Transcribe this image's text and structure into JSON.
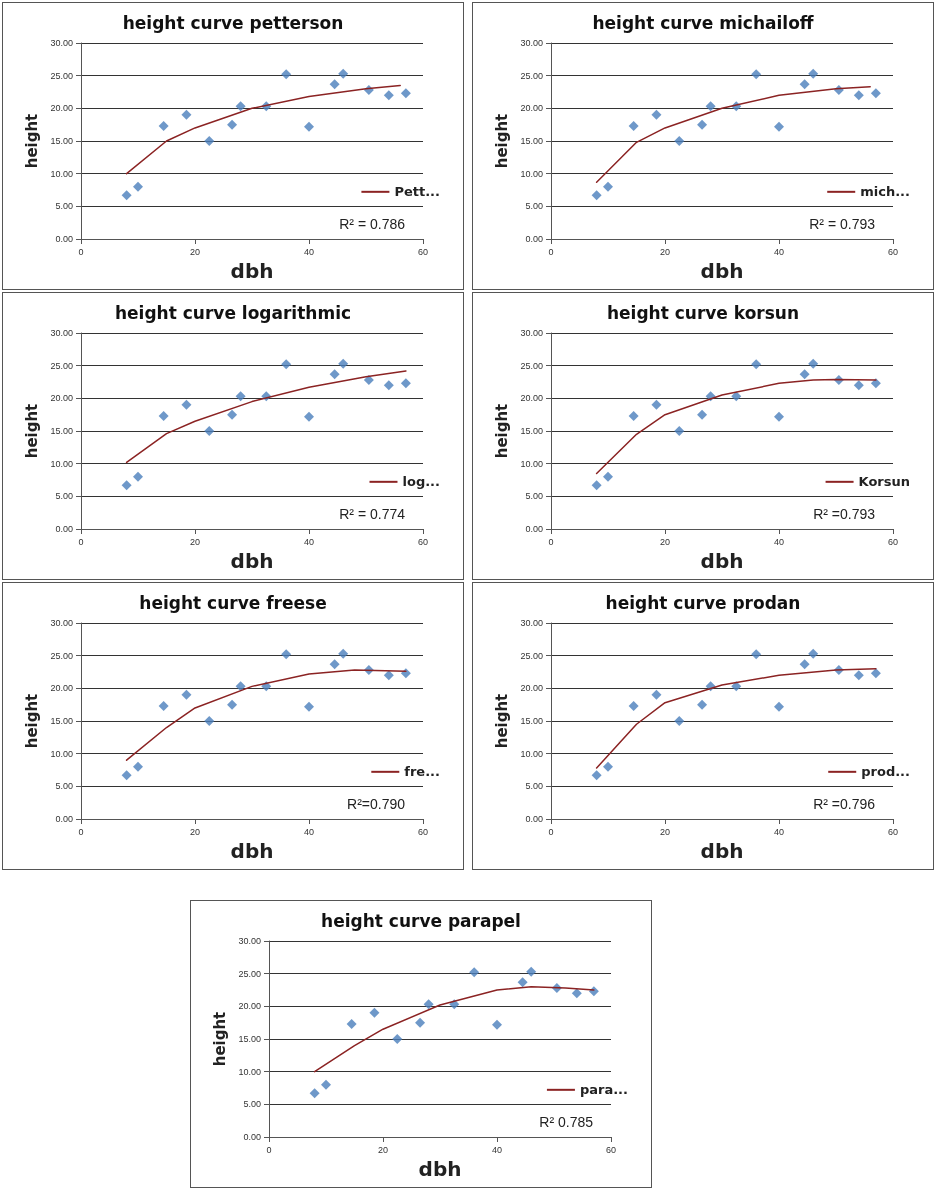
{
  "chart_data": [
    {
      "type": "scatter",
      "title": "height curve petterson",
      "xlabel": "dbh",
      "ylabel": "height",
      "xlim": [
        0,
        60
      ],
      "xticks": [
        0,
        20,
        40,
        60
      ],
      "ylim": [
        0,
        30
      ],
      "yticks": [
        {
          "value": 0,
          "label": "0.00"
        },
        {
          "value": 5,
          "label": "5.00"
        },
        {
          "value": 10,
          "label": "10.00"
        },
        {
          "value": 15,
          "label": "15.00"
        },
        {
          "value": 20,
          "label": "20.00"
        },
        {
          "value": 25,
          "label": "25.00"
        },
        {
          "value": 30,
          "label": "30.00"
        }
      ],
      "grid": "y",
      "legend": "right",
      "marker": "diamond",
      "annotations": [
        "R² = 0.786"
      ],
      "series": [
        {
          "type": "scatter",
          "color": "#4a7ebb",
          "x": [
            8,
            10,
            14.5,
            18.5,
            22.5,
            26.5,
            28,
            32.5,
            36,
            40,
            44.5,
            46,
            50.5,
            54,
            57
          ],
          "values": [
            6.7,
            8,
            17.3,
            19,
            15,
            17.5,
            20.3,
            20.3,
            25.2,
            17.2,
            23.7,
            25.3,
            22.8,
            22,
            22.3
          ]
        },
        {
          "type": "line",
          "name": "Pett...",
          "color": "#8b2323",
          "marker": "none",
          "x": [
            8,
            15,
            20,
            30,
            40,
            50,
            56
          ],
          "values": [
            10,
            15,
            17,
            20,
            21.8,
            23,
            23.5
          ]
        }
      ]
    },
    {
      "type": "scatter",
      "title": "height curve michailoff",
      "xlabel": "dbh",
      "ylabel": "height",
      "xlim": [
        0,
        60
      ],
      "xticks": [
        0,
        20,
        40,
        60
      ],
      "ylim": [
        0,
        30
      ],
      "yticks": [
        {
          "value": 0,
          "label": "0.00"
        },
        {
          "value": 5,
          "label": "5.00"
        },
        {
          "value": 10,
          "label": "10.00"
        },
        {
          "value": 15,
          "label": "15.00"
        },
        {
          "value": 20,
          "label": "20.00"
        },
        {
          "value": 25,
          "label": "25.00"
        },
        {
          "value": 30,
          "label": "30.00"
        }
      ],
      "grid": "y",
      "legend": "right",
      "marker": "diamond",
      "annotations": [
        "R² = 0.793"
      ],
      "series": [
        {
          "type": "scatter",
          "color": "#4a7ebb",
          "x": [
            8,
            10,
            14.5,
            18.5,
            22.5,
            26.5,
            28,
            32.5,
            36,
            40,
            44.5,
            46,
            50.5,
            54,
            57
          ],
          "values": [
            6.7,
            8,
            17.3,
            19,
            15,
            17.5,
            20.3,
            20.3,
            25.2,
            17.2,
            23.7,
            25.3,
            22.8,
            22,
            22.3
          ]
        },
        {
          "type": "line",
          "name": "mich...",
          "color": "#8b2323",
          "marker": "none",
          "x": [
            8,
            15,
            20,
            30,
            40,
            50,
            56
          ],
          "values": [
            8.7,
            14.8,
            17,
            20,
            22,
            23,
            23.3
          ]
        }
      ]
    },
    {
      "type": "scatter",
      "title": "height curve logarithmic",
      "xlabel": "dbh",
      "ylabel": "height",
      "xlim": [
        0,
        60
      ],
      "xticks": [
        0,
        20,
        40,
        60
      ],
      "ylim": [
        0,
        30
      ],
      "yticks": [
        {
          "value": 0,
          "label": "0.00"
        },
        {
          "value": 5,
          "label": "5.00"
        },
        {
          "value": 10,
          "label": "10.00"
        },
        {
          "value": 15,
          "label": "15.00"
        },
        {
          "value": 20,
          "label": "20.00"
        },
        {
          "value": 25,
          "label": "25.00"
        },
        {
          "value": 30,
          "label": "30.00"
        }
      ],
      "grid": "y",
      "legend": "right",
      "marker": "diamond",
      "annotations": [
        "R² = 0.774"
      ],
      "series": [
        {
          "type": "scatter",
          "color": "#4a7ebb",
          "x": [
            8,
            10,
            14.5,
            18.5,
            22.5,
            26.5,
            28,
            32.5,
            36,
            40,
            44.5,
            46,
            50.5,
            54,
            57
          ],
          "values": [
            6.7,
            8,
            17.3,
            19,
            15,
            17.5,
            20.3,
            20.3,
            25.2,
            17.2,
            23.7,
            25.3,
            22.8,
            22,
            22.3
          ]
        },
        {
          "type": "line",
          "name": "log...",
          "color": "#8b2323",
          "marker": "none",
          "x": [
            8,
            15,
            20,
            30,
            40,
            50,
            57
          ],
          "values": [
            10.2,
            14.6,
            16.5,
            19.5,
            21.7,
            23.3,
            24.2
          ]
        }
      ]
    },
    {
      "type": "scatter",
      "title": "height curve korsun",
      "xlabel": "dbh",
      "ylabel": "height",
      "xlim": [
        0,
        60
      ],
      "xticks": [
        0,
        20,
        40,
        60
      ],
      "ylim": [
        0,
        30
      ],
      "yticks": [
        {
          "value": 0,
          "label": "0.00"
        },
        {
          "value": 5,
          "label": "5.00"
        },
        {
          "value": 10,
          "label": "10.00"
        },
        {
          "value": 15,
          "label": "15.00"
        },
        {
          "value": 20,
          "label": "20.00"
        },
        {
          "value": 25,
          "label": "25.00"
        },
        {
          "value": 30,
          "label": "30.00"
        }
      ],
      "grid": "y",
      "legend": "right",
      "marker": "diamond",
      "annotations": [
        "R² =0.793"
      ],
      "series": [
        {
          "type": "scatter",
          "color": "#4a7ebb",
          "x": [
            8,
            10,
            14.5,
            18.5,
            22.5,
            26.5,
            28,
            32.5,
            36,
            40,
            44.5,
            46,
            50.5,
            54,
            57
          ],
          "values": [
            6.7,
            8,
            17.3,
            19,
            15,
            17.5,
            20.3,
            20.3,
            25.2,
            17.2,
            23.7,
            25.3,
            22.8,
            22,
            22.3
          ]
        },
        {
          "type": "line",
          "name": "Korsun",
          "color": "#8b2323",
          "marker": "none",
          "x": [
            8,
            15,
            20,
            30,
            40,
            46,
            50,
            57
          ],
          "values": [
            8.5,
            14.5,
            17.5,
            20.5,
            22.3,
            22.8,
            22.9,
            22.8
          ]
        }
      ]
    },
    {
      "type": "scatter",
      "title": "height curve freese",
      "xlabel": "dbh",
      "ylabel": "height",
      "xlim": [
        0,
        60
      ],
      "xticks": [
        0,
        20,
        40,
        60
      ],
      "ylim": [
        0,
        30
      ],
      "yticks": [
        {
          "value": 0,
          "label": "0.00"
        },
        {
          "value": 5,
          "label": "5.00"
        },
        {
          "value": 10,
          "label": "10.00"
        },
        {
          "value": 15,
          "label": "15.00"
        },
        {
          "value": 20,
          "label": "20.00"
        },
        {
          "value": 25,
          "label": "25.00"
        },
        {
          "value": 30,
          "label": "30.00"
        }
      ],
      "grid": "y",
      "legend": "right",
      "marker": "diamond",
      "annotations": [
        "R²=0.790"
      ],
      "series": [
        {
          "type": "scatter",
          "color": "#4a7ebb",
          "x": [
            8,
            10,
            14.5,
            18.5,
            22.5,
            26.5,
            28,
            32.5,
            36,
            40,
            44.5,
            46,
            50.5,
            54,
            57
          ],
          "values": [
            6.7,
            8,
            17.3,
            19,
            15,
            17.5,
            20.3,
            20.3,
            25.2,
            17.2,
            23.7,
            25.3,
            22.8,
            22,
            22.3
          ]
        },
        {
          "type": "line",
          "name": "fre...",
          "color": "#8b2323",
          "marker": "none",
          "x": [
            8,
            15,
            20,
            30,
            40,
            48,
            57
          ],
          "values": [
            9,
            14,
            17,
            20.3,
            22.2,
            22.8,
            22.6
          ]
        }
      ]
    },
    {
      "type": "scatter",
      "title": "height curve prodan",
      "xlabel": "dbh",
      "ylabel": "height",
      "xlim": [
        0,
        60
      ],
      "xticks": [
        0,
        20,
        40,
        60
      ],
      "ylim": [
        0,
        30
      ],
      "yticks": [
        {
          "value": 0,
          "label": "0.00"
        },
        {
          "value": 5,
          "label": "5.00"
        },
        {
          "value": 10,
          "label": "10.00"
        },
        {
          "value": 15,
          "label": "15.00"
        },
        {
          "value": 20,
          "label": "20.00"
        },
        {
          "value": 25,
          "label": "25.00"
        },
        {
          "value": 30,
          "label": "30.00"
        }
      ],
      "grid": "y",
      "legend": "right",
      "marker": "diamond",
      "annotations": [
        "R² =0.796"
      ],
      "series": [
        {
          "type": "scatter",
          "color": "#4a7ebb",
          "x": [
            8,
            10,
            14.5,
            18.5,
            22.5,
            26.5,
            28,
            32.5,
            36,
            40,
            44.5,
            46,
            50.5,
            54,
            57
          ],
          "values": [
            6.7,
            8,
            17.3,
            19,
            15,
            17.5,
            20.3,
            20.3,
            25.2,
            17.2,
            23.7,
            25.3,
            22.8,
            22,
            22.3
          ]
        },
        {
          "type": "line",
          "name": "prod...",
          "color": "#8b2323",
          "marker": "none",
          "x": [
            8,
            15,
            20,
            30,
            40,
            50,
            57
          ],
          "values": [
            7.8,
            14.5,
            17.8,
            20.5,
            22,
            22.8,
            23
          ]
        }
      ]
    },
    {
      "type": "scatter",
      "title": "height curve parapel",
      "xlabel": "dbh",
      "ylabel": "height",
      "xlim": [
        0,
        60
      ],
      "xticks": [
        0,
        20,
        40,
        60
      ],
      "ylim": [
        0,
        30
      ],
      "yticks": [
        {
          "value": 0,
          "label": "0.00"
        },
        {
          "value": 5,
          "label": "5.00"
        },
        {
          "value": 10,
          "label": "10.00"
        },
        {
          "value": 15,
          "label": "15.00"
        },
        {
          "value": 20,
          "label": "20.00"
        },
        {
          "value": 25,
          "label": "25.00"
        },
        {
          "value": 30,
          "label": "30.00"
        }
      ],
      "grid": "y",
      "legend": "right",
      "marker": "diamond",
      "annotations": [
        "R² 0.785"
      ],
      "series": [
        {
          "type": "scatter",
          "color": "#4a7ebb",
          "x": [
            8,
            10,
            14.5,
            18.5,
            22.5,
            26.5,
            28,
            32.5,
            36,
            40,
            44.5,
            46,
            50.5,
            54,
            57
          ],
          "values": [
            6.7,
            8,
            17.3,
            19,
            15,
            17.5,
            20.3,
            20.3,
            25.2,
            17.2,
            23.7,
            25.3,
            22.8,
            22,
            22.3
          ]
        },
        {
          "type": "line",
          "name": "para...",
          "color": "#8b2323",
          "marker": "none",
          "x": [
            8,
            15,
            20,
            30,
            40,
            46,
            52,
            57
          ],
          "values": [
            10,
            14,
            16.5,
            20.2,
            22.5,
            23,
            22.8,
            22.5
          ]
        }
      ]
    }
  ]
}
